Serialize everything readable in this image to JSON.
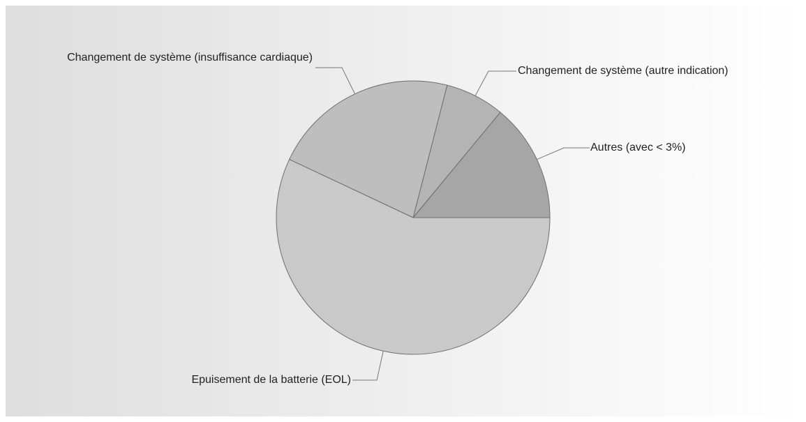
{
  "chart_data": {
    "type": "pie",
    "categories": [
      "Autres (avec < 3%)",
      "Changement de système (autre indication)",
      "Changement de système (insuffisance cardiaque)",
      "Epuisement de la batterie (EOL)"
    ],
    "values": [
      14,
      7,
      22,
      57
    ],
    "colors": [
      "#a6a6a6",
      "#b4b4b4",
      "#bebebe",
      "#c9c9c9"
    ]
  }
}
